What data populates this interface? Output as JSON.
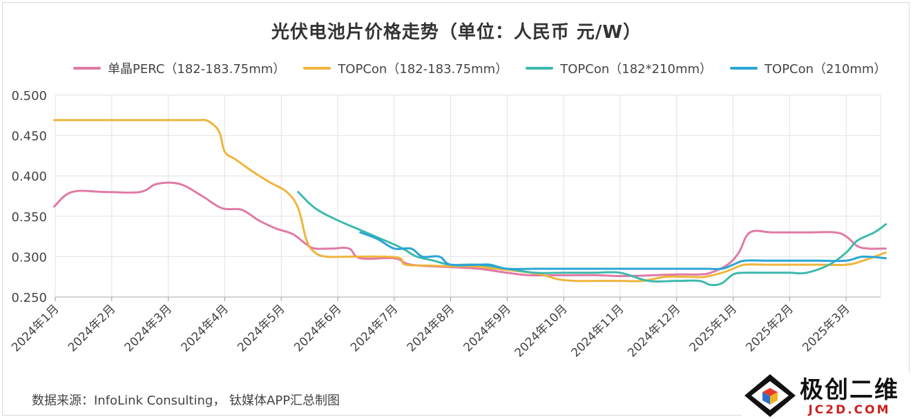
{
  "chart_data": {
    "type": "line",
    "title": "光伏电池片价格走势（单位：人民币 元/W）",
    "xlabel": "",
    "ylabel": "",
    "ylim": [
      0.25,
      0.5
    ],
    "yticks": [
      "0.500",
      "0.450",
      "0.400",
      "0.350",
      "0.300",
      "0.250"
    ],
    "categories": [
      "2024年1月",
      "2024年2月",
      "2024年3月",
      "2024年4月",
      "2024年5月",
      "2024年6月",
      "2024年7月",
      "2024年8月",
      "2024年9月",
      "2024年10月",
      "2024年11月",
      "2024年12月",
      "2025年1月",
      "2025年2月",
      "2025年3月"
    ],
    "grid": true,
    "legend_position": "top",
    "series": [
      {
        "name": "单晶PERC（182-183.75mm）",
        "color": "#e07aa6",
        "points": [
          [
            -0.02,
            0.362
          ],
          [
            0.3,
            0.38
          ],
          [
            0.9,
            0.38
          ],
          [
            1.5,
            0.38
          ],
          [
            1.8,
            0.39
          ],
          [
            2.2,
            0.39
          ],
          [
            2.6,
            0.375
          ],
          [
            2.95,
            0.36
          ],
          [
            3.3,
            0.358
          ],
          [
            3.6,
            0.345
          ],
          [
            3.9,
            0.335
          ],
          [
            4.2,
            0.328
          ],
          [
            4.45,
            0.315
          ],
          [
            4.6,
            0.31
          ],
          [
            4.9,
            0.31
          ],
          [
            5.2,
            0.31
          ],
          [
            5.4,
            0.298
          ],
          [
            6.0,
            0.298
          ],
          [
            6.3,
            0.29
          ],
          [
            7.0,
            0.287
          ],
          [
            7.5,
            0.285
          ],
          [
            8.0,
            0.28
          ],
          [
            8.4,
            0.277
          ],
          [
            9.0,
            0.277
          ],
          [
            9.6,
            0.277
          ],
          [
            10.0,
            0.276
          ],
          [
            10.6,
            0.277
          ],
          [
            11.0,
            0.278
          ],
          [
            11.4,
            0.278
          ],
          [
            11.6,
            0.28
          ],
          [
            11.9,
            0.29
          ],
          [
            12.1,
            0.305
          ],
          [
            12.3,
            0.33
          ],
          [
            12.7,
            0.33
          ],
          [
            13.3,
            0.33
          ],
          [
            13.8,
            0.33
          ],
          [
            14.0,
            0.325
          ],
          [
            14.2,
            0.313
          ],
          [
            14.4,
            0.31
          ],
          [
            14.7,
            0.31
          ]
        ]
      },
      {
        "name": "TOPCon（182-183.75mm）",
        "color": "#f0b43c",
        "points": [
          [
            -0.02,
            0.469
          ],
          [
            0.5,
            0.469
          ],
          [
            1.0,
            0.469
          ],
          [
            1.5,
            0.469
          ],
          [
            2.0,
            0.469
          ],
          [
            2.5,
            0.469
          ],
          [
            2.7,
            0.468
          ],
          [
            2.9,
            0.455
          ],
          [
            3.0,
            0.43
          ],
          [
            3.2,
            0.42
          ],
          [
            3.5,
            0.405
          ],
          [
            3.8,
            0.392
          ],
          [
            4.1,
            0.38
          ],
          [
            4.3,
            0.36
          ],
          [
            4.45,
            0.32
          ],
          [
            4.6,
            0.305
          ],
          [
            4.8,
            0.3
          ],
          [
            5.2,
            0.3
          ],
          [
            5.8,
            0.3
          ],
          [
            6.1,
            0.298
          ],
          [
            6.2,
            0.29
          ],
          [
            6.6,
            0.289
          ],
          [
            7.0,
            0.288
          ],
          [
            7.4,
            0.288
          ],
          [
            7.8,
            0.285
          ],
          [
            8.2,
            0.282
          ],
          [
            8.6,
            0.278
          ],
          [
            8.9,
            0.272
          ],
          [
            9.2,
            0.27
          ],
          [
            9.6,
            0.27
          ],
          [
            10.0,
            0.27
          ],
          [
            10.4,
            0.27
          ],
          [
            10.8,
            0.275
          ],
          [
            11.2,
            0.275
          ],
          [
            11.5,
            0.275
          ],
          [
            11.8,
            0.28
          ],
          [
            12.0,
            0.285
          ],
          [
            12.2,
            0.29
          ],
          [
            12.6,
            0.29
          ],
          [
            13.0,
            0.29
          ],
          [
            13.5,
            0.29
          ],
          [
            14.0,
            0.29
          ],
          [
            14.3,
            0.295
          ],
          [
            14.7,
            0.305
          ]
        ]
      },
      {
        "name": "TOPCon（182*210mm）",
        "color": "#3db9ad",
        "points": [
          [
            4.3,
            0.38
          ],
          [
            4.6,
            0.36
          ],
          [
            5.0,
            0.345
          ],
          [
            5.5,
            0.33
          ],
          [
            6.0,
            0.315
          ],
          [
            6.2,
            0.308
          ],
          [
            6.4,
            0.3
          ],
          [
            6.7,
            0.295
          ],
          [
            7.0,
            0.29
          ],
          [
            7.5,
            0.29
          ],
          [
            8.0,
            0.285
          ],
          [
            8.5,
            0.28
          ],
          [
            9.0,
            0.28
          ],
          [
            9.5,
            0.28
          ],
          [
            10.0,
            0.28
          ],
          [
            10.5,
            0.27
          ],
          [
            11.0,
            0.27
          ],
          [
            11.4,
            0.27
          ],
          [
            11.6,
            0.265
          ],
          [
            11.8,
            0.267
          ],
          [
            12.0,
            0.278
          ],
          [
            12.2,
            0.28
          ],
          [
            12.6,
            0.28
          ],
          [
            13.0,
            0.28
          ],
          [
            13.3,
            0.28
          ],
          [
            13.7,
            0.29
          ],
          [
            14.0,
            0.305
          ],
          [
            14.2,
            0.32
          ],
          [
            14.5,
            0.33
          ],
          [
            14.7,
            0.34
          ]
        ]
      },
      {
        "name": "TOPCon（210mm）",
        "color": "#2ba4d6",
        "points": [
          [
            5.4,
            0.33
          ],
          [
            5.7,
            0.322
          ],
          [
            6.0,
            0.31
          ],
          [
            6.3,
            0.31
          ],
          [
            6.5,
            0.3
          ],
          [
            6.8,
            0.3
          ],
          [
            7.0,
            0.29
          ],
          [
            7.5,
            0.29
          ],
          [
            7.7,
            0.29
          ],
          [
            8.0,
            0.285
          ],
          [
            8.5,
            0.285
          ],
          [
            9.0,
            0.285
          ],
          [
            10.0,
            0.285
          ],
          [
            11.0,
            0.285
          ],
          [
            11.5,
            0.285
          ],
          [
            11.8,
            0.285
          ],
          [
            12.0,
            0.29
          ],
          [
            12.2,
            0.295
          ],
          [
            12.6,
            0.295
          ],
          [
            13.0,
            0.295
          ],
          [
            13.5,
            0.295
          ],
          [
            14.0,
            0.295
          ],
          [
            14.3,
            0.3
          ],
          [
            14.7,
            0.298
          ]
        ]
      }
    ]
  },
  "source": "数据来源：InfoLink Consulting， 钛媒体APP汇总制图",
  "watermark": {
    "name_cn": "极创二维",
    "domain": "JC2D.COM"
  }
}
